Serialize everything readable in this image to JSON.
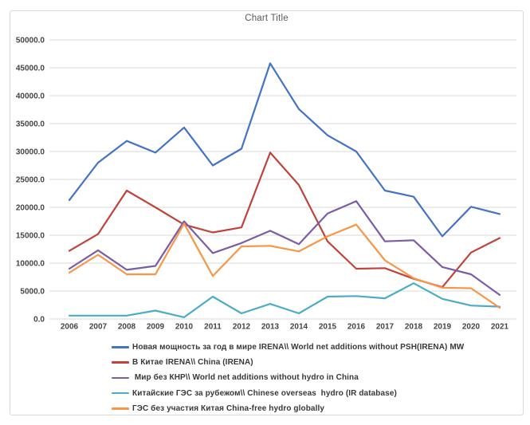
{
  "chart": {
    "title": "Chart Title"
  },
  "chart_data": {
    "type": "line",
    "title": "Chart Title",
    "xlabel": "",
    "ylabel": "",
    "ylim": [
      0,
      50000
    ],
    "grid": "horizontal",
    "legend_position": "bottom-left",
    "categories": [
      "2006",
      "2007",
      "2008",
      "2009",
      "2010",
      "2011",
      "2012",
      "2013",
      "2014",
      "2015",
      "2016",
      "2017",
      "2018",
      "2019",
      "2020",
      "2021"
    ],
    "y_ticks": {
      "values": [
        0,
        5000,
        10000,
        15000,
        20000,
        25000,
        30000,
        35000,
        40000,
        45000,
        50000
      ],
      "labels": [
        "0.0",
        "5000.0",
        "10000.0",
        "15000.0",
        "20000.0",
        "25000.0",
        "30000.0",
        "35000.0",
        "40000.0",
        "45000.0",
        "50000.0"
      ]
    },
    "series": [
      {
        "name": "Новая мощность за год в мире IRENA\\\\ World net additions without PSH(IRENA) MW",
        "color": "#4472C4",
        "values": [
          21300,
          28000,
          31900,
          29800,
          34300,
          27500,
          30500,
          45800,
          37600,
          32900,
          30000,
          23000,
          21900,
          14800,
          20100,
          18800
        ]
      },
      {
        "name": "В Китае IRENA\\\\ China (IRENA)",
        "color": "#C0433B",
        "values": [
          12200,
          15200,
          23000,
          20000,
          16900,
          15500,
          16400,
          29800,
          24000,
          13900,
          9000,
          9100,
          7200,
          5700,
          11900,
          14500
        ]
      },
      {
        "name": " Мир без КНР\\\\ World net additions without hydro in China",
        "color": "#7B5DA6",
        "values": [
          9000,
          12300,
          8800,
          9500,
          17500,
          11800,
          13600,
          15800,
          13400,
          18900,
          21100,
          13900,
          14100,
          9300,
          8000,
          4300
        ]
      },
      {
        "name": "Китайские ГЭС за рубежом\\\\ Chinese overseas  hydro (IR database)",
        "color": "#4BACC6",
        "values": [
          600,
          600,
          600,
          1500,
          300,
          4000,
          1000,
          2700,
          1000,
          4000,
          4100,
          3700,
          6400,
          3600,
          2400,
          2200
        ]
      },
      {
        "name": "ГЭС без участия Китая China-free hydro globally",
        "color": "#F79646",
        "values": [
          8300,
          11500,
          8000,
          8000,
          17100,
          7700,
          13000,
          13100,
          12100,
          14800,
          16900,
          10500,
          7300,
          5600,
          5500,
          2000
        ]
      }
    ],
    "colors": {
      "gridline": "#d9d9d9",
      "tick_label": "#444444",
      "title": "#595959"
    }
  }
}
